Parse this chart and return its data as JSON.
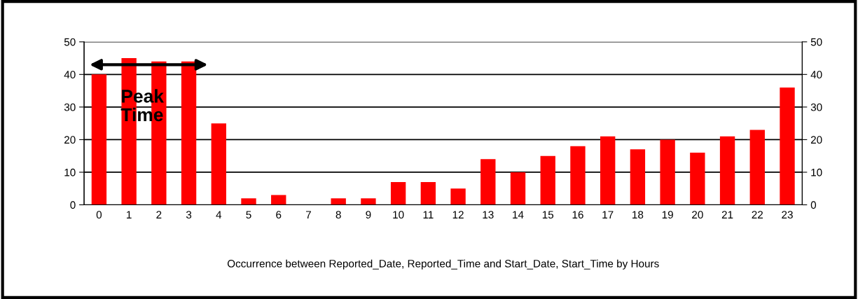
{
  "chart_data": {
    "type": "bar",
    "xlabel": "Occurrence between Reported_Date, Reported_Time and Start_Date, Start_Time by Hours",
    "categories": [
      "0",
      "1",
      "2",
      "3",
      "4",
      "5",
      "6",
      "7",
      "8",
      "9",
      "10",
      "11",
      "12",
      "13",
      "14",
      "15",
      "16",
      "17",
      "18",
      "19",
      "20",
      "21",
      "22",
      "23"
    ],
    "values": [
      40,
      45,
      44,
      44,
      25,
      2,
      3,
      0,
      2,
      2,
      7,
      7,
      5,
      14,
      10,
      15,
      18,
      21,
      17,
      20,
      16,
      21,
      23,
      36
    ],
    "color": "#ff0000",
    "ylim": [
      0,
      50
    ],
    "yticks": [
      0,
      10,
      20,
      30,
      40,
      50
    ],
    "y2lim": [
      0,
      50
    ],
    "y2ticks": [
      0,
      10,
      20,
      30,
      40,
      50
    ],
    "grid": "y",
    "annotations": [
      "Peak\nTime"
    ]
  }
}
